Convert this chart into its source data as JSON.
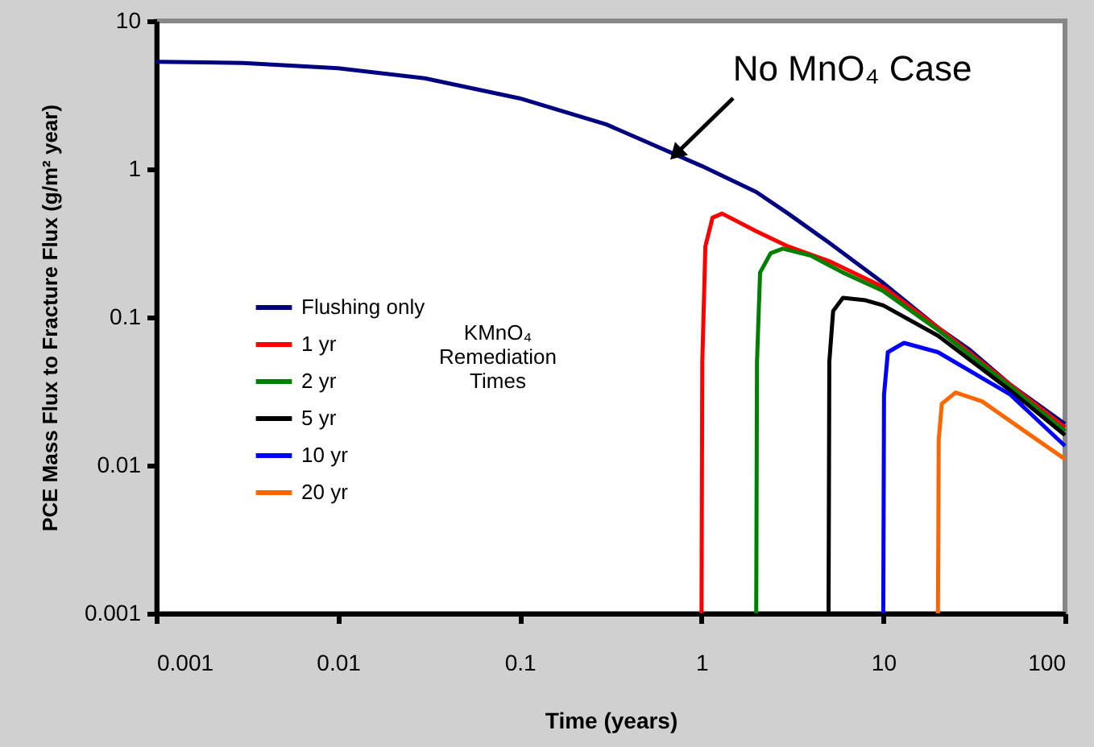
{
  "chart_data": {
    "type": "line",
    "xlabel": "Time (years)",
    "ylabel": "PCE Mass Flux to Fracture Flux (g/m² year)",
    "log": "xy",
    "xlim": [
      0.001,
      100
    ],
    "ylim": [
      0.001,
      10
    ],
    "xticks": [
      0.001,
      0.01,
      0.1,
      1,
      10,
      100
    ],
    "yticks": [
      0.001,
      0.01,
      0.1,
      1,
      10
    ],
    "grid": false,
    "legend": "left",
    "legend_title": "KMnO₄ Remediation Times",
    "line_style": "solid",
    "marker": "none",
    "annotations": [
      {
        "text": "No MnO₄ Case",
        "x": 0.74,
        "y": 1.3
      }
    ],
    "series": [
      {
        "name": "Flushing only",
        "color": "#000080",
        "x": [
          0.001,
          0.003,
          0.01,
          0.03,
          0.1,
          0.3,
          1,
          2,
          3,
          5,
          10,
          20,
          30,
          50,
          100
        ],
        "values": [
          5.3,
          5.2,
          4.8,
          4.1,
          3.0,
          2.0,
          1.05,
          0.7,
          0.5,
          0.32,
          0.17,
          0.085,
          0.06,
          0.035,
          0.019
        ]
      },
      {
        "name": "1 yr",
        "color": "#ff0000",
        "x": [
          1,
          1.01,
          1.05,
          1.15,
          1.3,
          2,
          3,
          5,
          10,
          20,
          50,
          100
        ],
        "values": [
          0.001,
          0.05,
          0.3,
          0.47,
          0.5,
          0.38,
          0.3,
          0.24,
          0.16,
          0.085,
          0.035,
          0.018
        ]
      },
      {
        "name": "2 yr",
        "color": "#008000",
        "x": [
          2,
          2.02,
          2.1,
          2.4,
          2.8,
          4,
          6,
          10,
          20,
          50,
          100
        ],
        "values": [
          0.001,
          0.05,
          0.2,
          0.27,
          0.29,
          0.26,
          0.2,
          0.15,
          0.082,
          0.034,
          0.017
        ]
      },
      {
        "name": "5 yr",
        "color": "#000000",
        "x": [
          5,
          5.05,
          5.3,
          6,
          8,
          10,
          20,
          50,
          100
        ],
        "values": [
          0.001,
          0.05,
          0.11,
          0.135,
          0.13,
          0.12,
          0.075,
          0.032,
          0.016
        ]
      },
      {
        "name": "10 yr",
        "color": "#0000ff",
        "x": [
          10,
          10.1,
          10.6,
          13,
          20,
          50,
          100
        ],
        "values": [
          0.001,
          0.03,
          0.058,
          0.067,
          0.058,
          0.03,
          0.0135
        ]
      },
      {
        "name": "20 yr",
        "color": "#ff6600",
        "x": [
          20,
          20.2,
          21,
          25,
          35,
          60,
          100
        ],
        "values": [
          0.001,
          0.015,
          0.026,
          0.031,
          0.027,
          0.017,
          0.011
        ]
      }
    ]
  }
}
